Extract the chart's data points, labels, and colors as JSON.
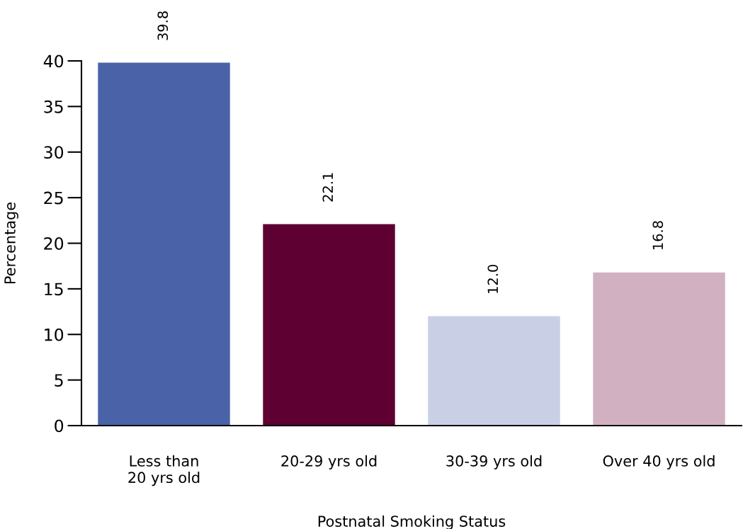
{
  "chart_data": {
    "type": "bar",
    "xlabel": "Postnatal Smoking Status",
    "ylabel": "Percentage",
    "categories": [
      "Less than\n20 yrs old",
      "20-29 yrs old",
      "30-39 yrs old",
      "Over 40 yrs old"
    ],
    "values": [
      39.8,
      22.1,
      12.0,
      16.8
    ],
    "value_labels": [
      "39.8",
      "22.1",
      "12.0",
      "16.8"
    ],
    "colors": [
      "#4a62a8",
      "#5f0033",
      "#c9d0e6",
      "#d1b1c1"
    ],
    "ylim": [
      0,
      40
    ],
    "yticks": [
      0,
      5,
      10,
      15,
      20,
      25,
      30,
      35,
      40
    ],
    "grid": false,
    "legend": false
  }
}
